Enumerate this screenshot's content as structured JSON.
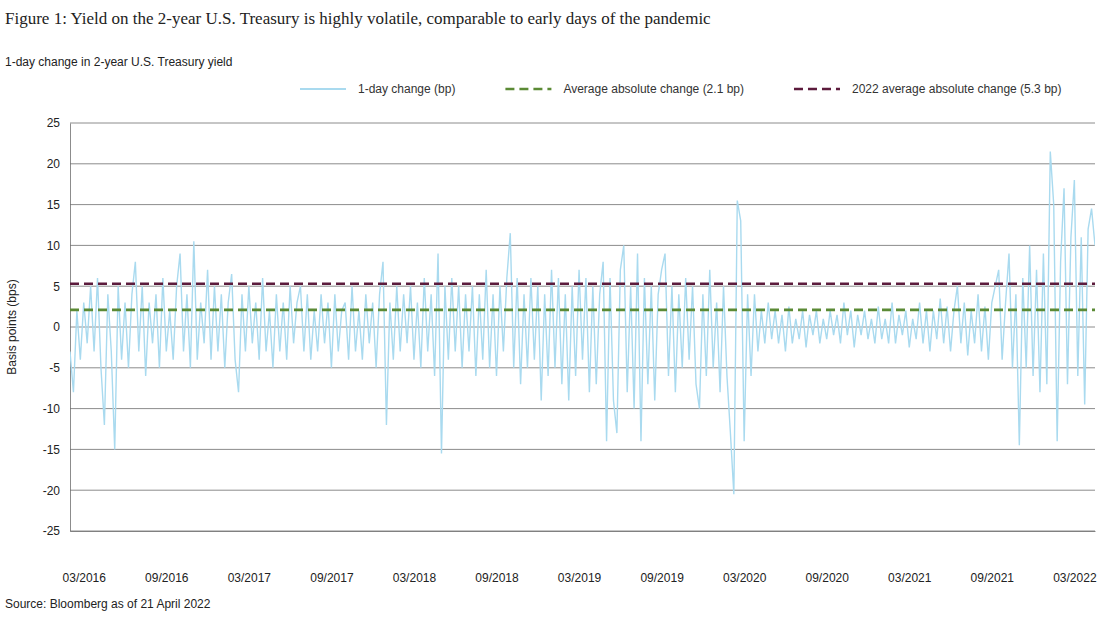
{
  "chart_data": {
    "type": "line",
    "title": "Figure 1: Yield on the 2-year U.S. Treasury is highly volatile, comparable to early days of the pandemic",
    "subtitle": "1-day change in 2-year U.S. Treasury yield",
    "y_label": "Basis points (bps)",
    "source": "Source: Bloomberg as of 21 April 2022",
    "categories": [
      null,
      null,
      null,
      null,
      "03/2016",
      null,
      null,
      null,
      null,
      null,
      null,
      null,
      null,
      null,
      null,
      null,
      null,
      null,
      null,
      null,
      null,
      null,
      null,
      null,
      null,
      null,
      null,
      null,
      "09/2016",
      null,
      null,
      null,
      null,
      null,
      null,
      null,
      null,
      null,
      null,
      null,
      null,
      null,
      null,
      null,
      null,
      null,
      null,
      null,
      null,
      null,
      null,
      null,
      "03/2017",
      null,
      null,
      null,
      null,
      null,
      null,
      null,
      null,
      null,
      null,
      null,
      null,
      null,
      null,
      null,
      null,
      null,
      null,
      null,
      null,
      null,
      null,
      null,
      "09/2017",
      null,
      null,
      null,
      null,
      null,
      null,
      null,
      null,
      null,
      null,
      null,
      null,
      null,
      null,
      null,
      null,
      null,
      null,
      null,
      null,
      null,
      null,
      null,
      "03/2018",
      null,
      null,
      null,
      null,
      null,
      null,
      null,
      null,
      null,
      null,
      null,
      null,
      null,
      null,
      null,
      null,
      null,
      null,
      null,
      null,
      null,
      null,
      null,
      "09/2018",
      null,
      null,
      null,
      null,
      null,
      null,
      null,
      null,
      null,
      null,
      null,
      null,
      null,
      null,
      null,
      null,
      null,
      null,
      null,
      null,
      null,
      null,
      null,
      "03/2019",
      null,
      null,
      null,
      null,
      null,
      null,
      null,
      null,
      null,
      null,
      null,
      null,
      null,
      null,
      null,
      null,
      null,
      null,
      null,
      null,
      null,
      null,
      null,
      "09/2019",
      null,
      null,
      null,
      null,
      null,
      null,
      null,
      null,
      null,
      null,
      null,
      null,
      null,
      null,
      null,
      null,
      null,
      null,
      null,
      null,
      null,
      null,
      null,
      "03/2020",
      null,
      null,
      null,
      null,
      null,
      null,
      null,
      null,
      null,
      null,
      null,
      null,
      null,
      null,
      null,
      null,
      null,
      null,
      null,
      null,
      null,
      null,
      null,
      "09/2020",
      null,
      null,
      null,
      null,
      null,
      null,
      null,
      null,
      null,
      null,
      null,
      null,
      null,
      null,
      null,
      null,
      null,
      null,
      null,
      null,
      null,
      null,
      null,
      "03/2021",
      null,
      null,
      null,
      null,
      null,
      null,
      null,
      null,
      null,
      null,
      null,
      null,
      null,
      null,
      null,
      null,
      null,
      null,
      null,
      null,
      null,
      null,
      null,
      "09/2021",
      null,
      null,
      null,
      null,
      null,
      null,
      null,
      null,
      null,
      null,
      null,
      null,
      null,
      null,
      null,
      null,
      null,
      null,
      null,
      null,
      null,
      null,
      null,
      "03/2022",
      null,
      null,
      null,
      null,
      null,
      null
    ],
    "series": [
      {
        "name": "1-day change (bp)",
        "color": "#a9daef",
        "values": [
          -3,
          -8,
          2,
          -4,
          3,
          -2,
          5,
          -3,
          6,
          -5,
          -12,
          4,
          -3,
          -15,
          5,
          -4,
          3,
          -5,
          4,
          8,
          -3,
          5,
          -6,
          3,
          -2,
          4,
          -5,
          6,
          -3,
          2,
          -4,
          5,
          9,
          -3,
          4,
          -5,
          10.5,
          -4,
          3,
          -2,
          7,
          -4,
          5,
          -3,
          4,
          -5,
          3,
          6.5,
          -4,
          -8,
          4,
          -3,
          5,
          -2,
          3,
          -4,
          6,
          -3,
          2,
          -5,
          4,
          -3,
          3,
          -4,
          5,
          -2,
          3,
          5,
          -3,
          4,
          -4,
          2,
          -3,
          4,
          -2,
          3,
          -5,
          4,
          -3,
          2,
          3,
          -4,
          5,
          -3,
          2,
          -4,
          4,
          -2,
          3,
          -5,
          4,
          8,
          -12,
          3,
          -4,
          5,
          -3,
          4,
          -2,
          5,
          -4,
          3,
          -5,
          6,
          -3,
          4,
          -6,
          9,
          -15.5,
          5,
          -4,
          6,
          -3,
          5,
          -5,
          4,
          -3,
          5,
          -6,
          4,
          -4,
          7,
          -5,
          4,
          -6,
          5,
          -3,
          6,
          11.5,
          -5,
          6,
          -7,
          4,
          -5,
          6,
          -4,
          5,
          -9,
          4,
          -6,
          7,
          -5,
          6,
          -7,
          4,
          -9,
          5,
          -6,
          7,
          -4,
          6,
          -8,
          5,
          -7,
          4,
          8,
          -14,
          6,
          -9,
          -13,
          7,
          10,
          -8,
          5,
          -10,
          9,
          -14,
          6,
          -7,
          5,
          -9,
          4,
          7,
          9,
          -6,
          5,
          -8,
          4,
          -5,
          6,
          -4,
          5,
          -7,
          -10,
          4,
          -6,
          7,
          -5,
          3,
          -8,
          5,
          -6,
          -13,
          -20.5,
          15.5,
          13,
          -14,
          4,
          -6,
          4,
          -3,
          2,
          -2,
          3,
          -1.5,
          2,
          -2,
          1.5,
          -3,
          2.5,
          -2,
          1,
          -1.5,
          2,
          -2.5,
          1.5,
          -1,
          2,
          -2,
          1,
          -1.5,
          2,
          -1,
          1.5,
          -2,
          3,
          -1,
          2,
          -2.5,
          1.5,
          -1,
          2,
          -1.5,
          1,
          -2,
          2.5,
          -1.5,
          1,
          -2,
          3,
          -2,
          1.5,
          -1,
          2,
          -2.5,
          1,
          -1.5,
          3,
          -2,
          2,
          -3,
          2,
          -1.5,
          3.5,
          -2,
          2.5,
          -3,
          2,
          5,
          -2,
          3,
          -3.5,
          2,
          -2,
          4,
          -3,
          2.5,
          -4,
          3,
          5,
          7,
          -4,
          3,
          9,
          -5,
          4,
          -14.5,
          6,
          -5,
          10,
          -6,
          7,
          -8,
          9,
          -7,
          21.5,
          15,
          -14,
          8,
          17,
          -7,
          11,
          18,
          -6,
          11,
          -9.5,
          12,
          14.5,
          10
        ]
      }
    ],
    "reference_lines": [
      {
        "name": "Average absolute change (2.1 bp)",
        "value": 2.1,
        "color": "#5b8a35",
        "line_style": "dashed"
      },
      {
        "name": "2022 average absolute change (5.3 bp)",
        "value": 5.3,
        "color": "#5c1b3c",
        "line_style": "dashed"
      }
    ],
    "ylim": [
      -25,
      25
    ],
    "yticks": [
      -25,
      -20,
      -15,
      -10,
      -5,
      0,
      5,
      10,
      15,
      20,
      25
    ],
    "grid": true,
    "legend": "top"
  }
}
